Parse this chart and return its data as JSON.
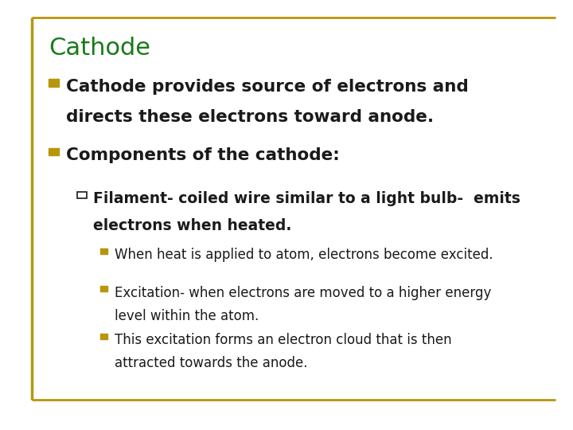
{
  "title": "Cathode",
  "title_color": "#1a7a1a",
  "background_color": "#ffffff",
  "border_color": "#b8960c",
  "bullet_color": "#b8960c",
  "text_color": "#1a1a1a",
  "bullet1_line1": "Cathode provides source of electrons and",
  "bullet1_line2": "directs these electrons toward anode.",
  "bullet2": "Components of the cathode:",
  "sub_bullet1_line1": "Filament- coiled wire similar to a light bulb-  emits",
  "sub_bullet1_line2": "electrons when heated.",
  "ssb1": "When heat is applied to atom, electrons become excited.",
  "ssb2_line1": "Excitation- when electrons are moved to a higher energy",
  "ssb2_line2": "level within the atom.",
  "ssb3_line1": "This excitation forms an electron cloud that is then",
  "ssb3_line2": "attracted towards the anode.",
  "title_fontsize": 22,
  "bullet_fontsize": 15.5,
  "sub_bullet_fontsize": 13.5,
  "sub_sub_bullet_fontsize": 12
}
